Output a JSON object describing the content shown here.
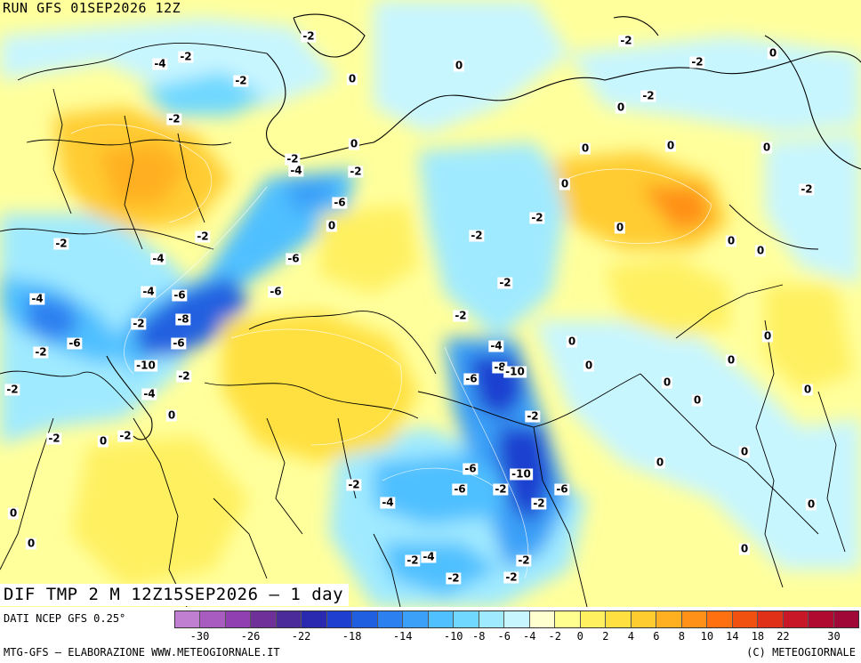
{
  "header": {
    "run_label": "RUN GFS 01SEP2026 12Z"
  },
  "map": {
    "title": "DIF TMP 2 M 12Z15SEP2026 — 1 day"
  },
  "footer": {
    "source": "DATI NCEP GFS 0.25°",
    "credit_left": "MTG-GFS — ELABORAZIONE WWW.METEOGIORNALE.IT",
    "credit_right": "(C) METEOGIORNALE"
  },
  "colors": {
    "colorbar": [
      "#c07fd0",
      "#a85cc0",
      "#9040b0",
      "#70309a",
      "#4b2a9a",
      "#2a2ab0",
      "#1f3fd0",
      "#2060e0",
      "#2d80f0",
      "#3aa0f8",
      "#50c0ff",
      "#70d8ff",
      "#a0eaff",
      "#c8f6ff",
      "#ffffd0",
      "#ffff90",
      "#fff060",
      "#ffe040",
      "#ffcc30",
      "#ffb020",
      "#ff9018",
      "#ff7010",
      "#f05010",
      "#e03018",
      "#c81828",
      "#b00a30",
      "#a00838"
    ]
  },
  "legend": {
    "ticks": [
      "-30",
      "-26",
      "-22",
      "-18",
      "-14",
      "-10",
      "-8",
      "-6",
      "-4",
      "-2",
      "0",
      "2",
      "4",
      "6",
      "8",
      "10",
      "14",
      "18",
      "22",
      "30"
    ]
  },
  "contour_labels": [
    "-2",
    "-4",
    "-2",
    "-2",
    "-2",
    "-2",
    "-4",
    "-6",
    "-2",
    "-6",
    "-8",
    "-2",
    "-4",
    "-4",
    "-6",
    "-6",
    "-10",
    "-4",
    "-6",
    "-2",
    "-4",
    "-2",
    "-2",
    "-2",
    "-6",
    "-2",
    "-2",
    "-2",
    "-2",
    "-2",
    "-4",
    "-8",
    "-10",
    "-6",
    "-2",
    "-6",
    "-2",
    "-10",
    "-2",
    "-4",
    "-6",
    "-2",
    "-6",
    "-2",
    "-2",
    "-4",
    "-2",
    "-2",
    "-2",
    "-2",
    "-2",
    "-2",
    "-2",
    "-2",
    "0",
    "0",
    "0",
    "0",
    "0",
    "0",
    "0",
    "0",
    "0",
    "0",
    "0",
    "0",
    "0",
    "0",
    "0",
    "0",
    "0",
    "0",
    "0",
    "0",
    "0",
    "0",
    "0",
    "0",
    "0",
    "0",
    "0",
    "0"
  ]
}
